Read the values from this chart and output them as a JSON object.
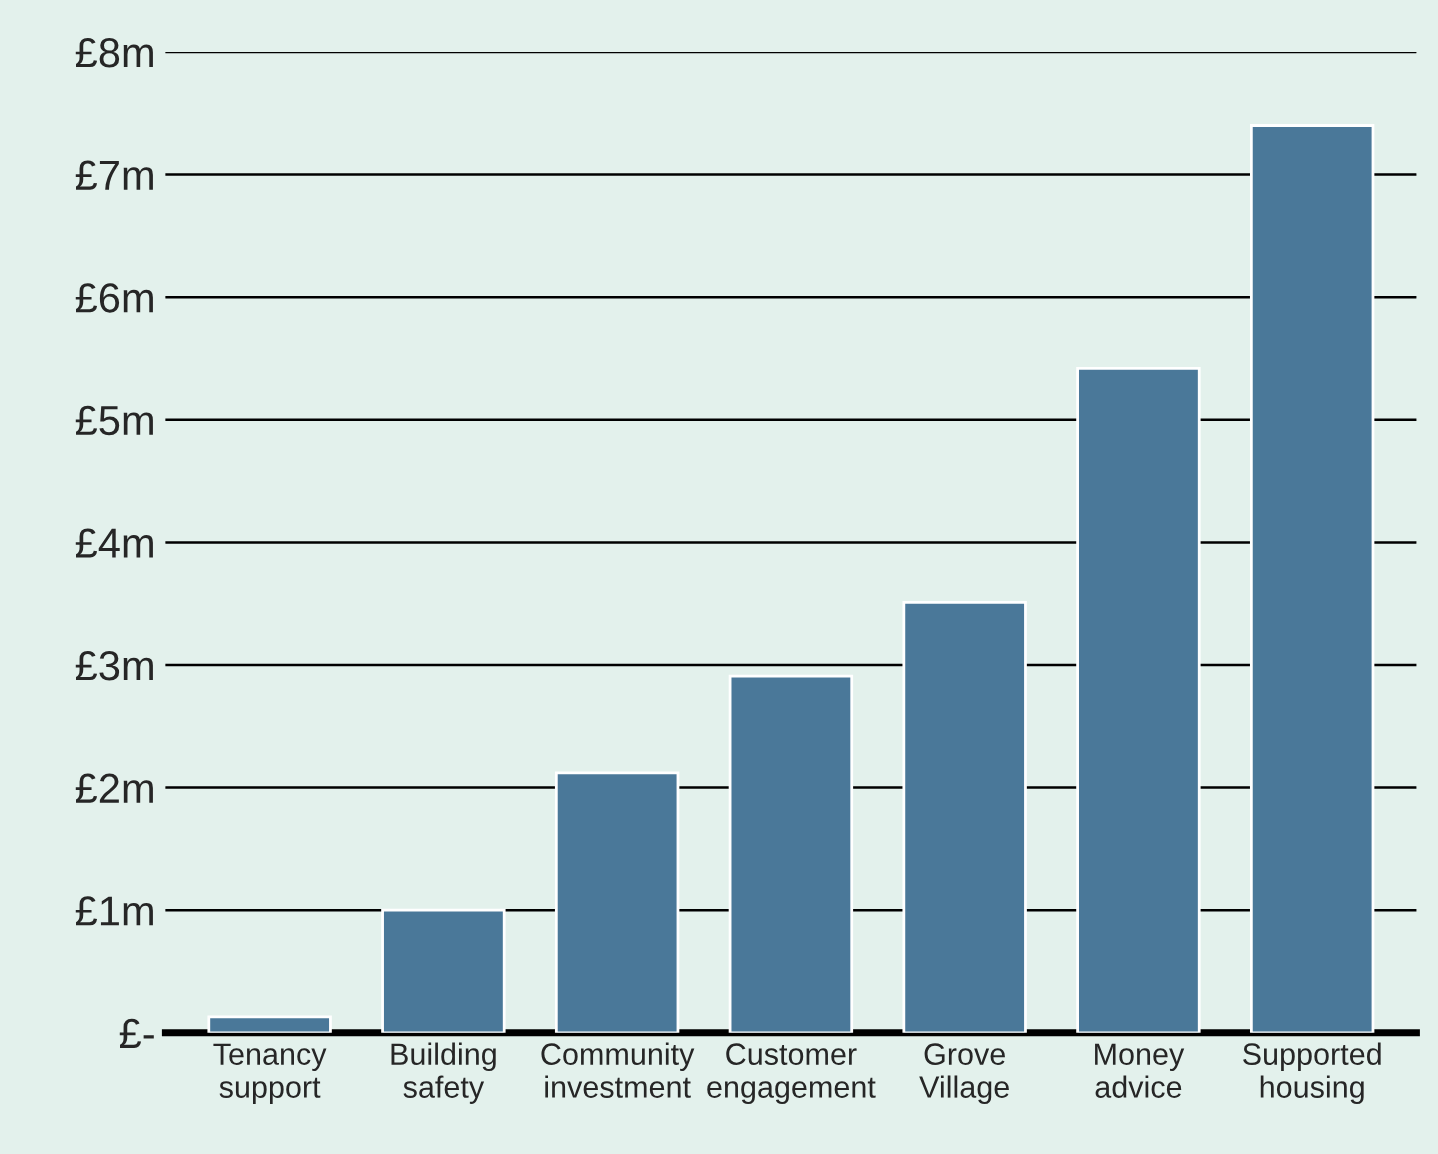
{
  "chart_data": {
    "type": "bar",
    "categories": [
      "Tenancy\nsupport",
      "Building\nsafety",
      "Community\ninvestment",
      "Customer\nengagement",
      "Grove\nVillage",
      "Money\nadvice",
      "Supported\nhousing"
    ],
    "values": [
      0.13,
      1.0,
      2.12,
      2.91,
      3.51,
      5.42,
      7.4
    ],
    "color": "#4a7899",
    "ylim": [
      0,
      8
    ],
    "yticks": [
      {
        "value": 0,
        "label": "£-"
      },
      {
        "value": 1,
        "label": "£1m"
      },
      {
        "value": 2,
        "label": "£2m"
      },
      {
        "value": 3,
        "label": "£3m"
      },
      {
        "value": 4,
        "label": "£4m"
      },
      {
        "value": 5,
        "label": "£5m"
      },
      {
        "value": 6,
        "label": "£6m"
      },
      {
        "value": 7,
        "label": "£7m"
      },
      {
        "value": 8,
        "label": "£8m"
      }
    ],
    "grid": "y"
  }
}
